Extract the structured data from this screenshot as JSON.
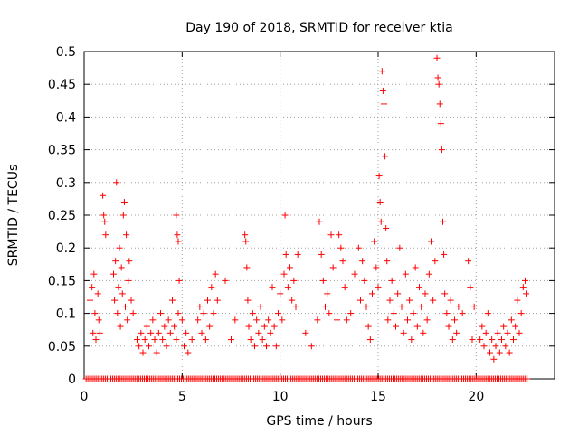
{
  "chart_data": {
    "type": "scatter",
    "title": "Day 190 of 2018, SRMTID for receiver ktia",
    "xlabel": "GPS time / hours",
    "ylabel": "SRMTID / TECUs",
    "xlim": [
      0,
      24
    ],
    "ylim": [
      0,
      0.5
    ],
    "xticks": [
      0,
      5,
      10,
      15,
      20
    ],
    "xtick_labels": [
      "0",
      "5",
      "10",
      "15",
      "20"
    ],
    "yticks": [
      0,
      0.05,
      0.1,
      0.15,
      0.2,
      0.25,
      0.3,
      0.35,
      0.4,
      0.45,
      0.5
    ],
    "ytick_labels": [
      "0",
      "0.05",
      "0.1",
      "0.15",
      "0.2",
      "0.25",
      "0.3",
      "0.35",
      "0.4",
      "0.45",
      "0.5"
    ],
    "grid": true,
    "marker": "+",
    "marker_color": "#ff0000",
    "series": [
      {
        "name": "SRMTID",
        "points": [
          [
            0.3,
            0.12
          ],
          [
            0.4,
            0.14
          ],
          [
            0.45,
            0.07
          ],
          [
            0.5,
            0.16
          ],
          [
            0.55,
            0.1
          ],
          [
            0.6,
            0.06
          ],
          [
            0.7,
            0.13
          ],
          [
            0.75,
            0.09
          ],
          [
            0.8,
            0.07
          ],
          [
            0.95,
            0.28
          ],
          [
            1.0,
            0.25
          ],
          [
            1.05,
            0.24
          ],
          [
            1.1,
            0.22
          ],
          [
            1.5,
            0.16
          ],
          [
            1.55,
            0.12
          ],
          [
            1.6,
            0.18
          ],
          [
            1.65,
            0.3
          ],
          [
            1.7,
            0.1
          ],
          [
            1.75,
            0.14
          ],
          [
            1.8,
            0.2
          ],
          [
            1.85,
            0.08
          ],
          [
            1.9,
            0.17
          ],
          [
            1.95,
            0.13
          ],
          [
            2.0,
            0.25
          ],
          [
            2.05,
            0.27
          ],
          [
            2.1,
            0.11
          ],
          [
            2.15,
            0.22
          ],
          [
            2.2,
            0.09
          ],
          [
            2.25,
            0.15
          ],
          [
            2.3,
            0.18
          ],
          [
            2.4,
            0.12
          ],
          [
            2.5,
            0.1
          ],
          [
            2.7,
            0.06
          ],
          [
            2.8,
            0.05
          ],
          [
            2.9,
            0.07
          ],
          [
            3.0,
            0.04
          ],
          [
            3.1,
            0.06
          ],
          [
            3.2,
            0.08
          ],
          [
            3.3,
            0.05
          ],
          [
            3.4,
            0.07
          ],
          [
            3.5,
            0.09
          ],
          [
            3.6,
            0.06
          ],
          [
            3.7,
            0.04
          ],
          [
            3.8,
            0.07
          ],
          [
            3.9,
            0.1
          ],
          [
            4.0,
            0.06
          ],
          [
            4.1,
            0.08
          ],
          [
            4.2,
            0.05
          ],
          [
            4.3,
            0.09
          ],
          [
            4.4,
            0.07
          ],
          [
            4.5,
            0.12
          ],
          [
            4.6,
            0.08
          ],
          [
            4.7,
            0.06
          ],
          [
            4.8,
            0.1
          ],
          [
            4.7,
            0.25
          ],
          [
            4.75,
            0.22
          ],
          [
            4.8,
            0.21
          ],
          [
            4.85,
            0.15
          ],
          [
            5.0,
            0.09
          ],
          [
            5.1,
            0.05
          ],
          [
            5.2,
            0.07
          ],
          [
            5.3,
            0.04
          ],
          [
            5.5,
            0.06
          ],
          [
            5.8,
            0.09
          ],
          [
            5.9,
            0.11
          ],
          [
            6.0,
            0.07
          ],
          [
            6.1,
            0.1
          ],
          [
            6.2,
            0.06
          ],
          [
            6.3,
            0.12
          ],
          [
            6.4,
            0.08
          ],
          [
            6.5,
            0.14
          ],
          [
            6.6,
            0.1
          ],
          [
            6.7,
            0.16
          ],
          [
            6.8,
            0.12
          ],
          [
            7.2,
            0.15
          ],
          [
            7.5,
            0.06
          ],
          [
            7.7,
            0.09
          ],
          [
            8.2,
            0.22
          ],
          [
            8.25,
            0.21
          ],
          [
            8.3,
            0.17
          ],
          [
            8.35,
            0.12
          ],
          [
            8.4,
            0.08
          ],
          [
            8.5,
            0.06
          ],
          [
            8.6,
            0.1
          ],
          [
            8.7,
            0.05
          ],
          [
            8.8,
            0.09
          ],
          [
            8.9,
            0.07
          ],
          [
            9.0,
            0.11
          ],
          [
            9.1,
            0.06
          ],
          [
            9.2,
            0.08
          ],
          [
            9.3,
            0.05
          ],
          [
            9.4,
            0.09
          ],
          [
            9.5,
            0.07
          ],
          [
            9.6,
            0.14
          ],
          [
            9.7,
            0.08
          ],
          [
            9.8,
            0.05
          ],
          [
            9.9,
            0.1
          ],
          [
            10.0,
            0.13
          ],
          [
            10.1,
            0.09
          ],
          [
            10.2,
            0.16
          ],
          [
            10.25,
            0.25
          ],
          [
            10.3,
            0.19
          ],
          [
            10.4,
            0.14
          ],
          [
            10.5,
            0.17
          ],
          [
            10.6,
            0.12
          ],
          [
            10.7,
            0.15
          ],
          [
            10.8,
            0.11
          ],
          [
            10.9,
            0.19
          ],
          [
            11.3,
            0.07
          ],
          [
            11.6,
            0.05
          ],
          [
            11.9,
            0.09
          ],
          [
            12.0,
            0.24
          ],
          [
            12.1,
            0.19
          ],
          [
            12.2,
            0.15
          ],
          [
            12.3,
            0.11
          ],
          [
            12.4,
            0.13
          ],
          [
            12.5,
            0.1
          ],
          [
            12.6,
            0.22
          ],
          [
            12.7,
            0.17
          ],
          [
            12.9,
            0.09
          ],
          [
            13.0,
            0.22
          ],
          [
            13.1,
            0.2
          ],
          [
            13.2,
            0.18
          ],
          [
            13.3,
            0.14
          ],
          [
            13.4,
            0.09
          ],
          [
            13.6,
            0.1
          ],
          [
            13.8,
            0.16
          ],
          [
            14.0,
            0.2
          ],
          [
            14.1,
            0.12
          ],
          [
            14.2,
            0.18
          ],
          [
            14.3,
            0.15
          ],
          [
            14.4,
            0.11
          ],
          [
            14.5,
            0.08
          ],
          [
            14.6,
            0.06
          ],
          [
            14.7,
            0.13
          ],
          [
            14.8,
            0.21
          ],
          [
            14.9,
            0.17
          ],
          [
            15.0,
            0.14
          ],
          [
            15.05,
            0.31
          ],
          [
            15.1,
            0.27
          ],
          [
            15.15,
            0.24
          ],
          [
            15.2,
            0.47
          ],
          [
            15.25,
            0.44
          ],
          [
            15.3,
            0.42
          ],
          [
            15.35,
            0.34
          ],
          [
            15.4,
            0.23
          ],
          [
            15.45,
            0.18
          ],
          [
            15.5,
            0.09
          ],
          [
            15.6,
            0.12
          ],
          [
            15.7,
            0.15
          ],
          [
            15.8,
            0.1
          ],
          [
            15.9,
            0.08
          ],
          [
            16.0,
            0.13
          ],
          [
            16.1,
            0.2
          ],
          [
            16.2,
            0.11
          ],
          [
            16.3,
            0.07
          ],
          [
            16.4,
            0.16
          ],
          [
            16.5,
            0.09
          ],
          [
            16.6,
            0.12
          ],
          [
            16.7,
            0.06
          ],
          [
            16.8,
            0.1
          ],
          [
            16.9,
            0.17
          ],
          [
            17.0,
            0.08
          ],
          [
            17.1,
            0.14
          ],
          [
            17.2,
            0.11
          ],
          [
            17.3,
            0.07
          ],
          [
            17.4,
            0.13
          ],
          [
            17.5,
            0.09
          ],
          [
            17.6,
            0.16
          ],
          [
            17.7,
            0.21
          ],
          [
            17.8,
            0.12
          ],
          [
            17.9,
            0.18
          ],
          [
            18.0,
            0.49
          ],
          [
            18.05,
            0.46
          ],
          [
            18.1,
            0.45
          ],
          [
            18.15,
            0.42
          ],
          [
            18.2,
            0.39
          ],
          [
            18.25,
            0.35
          ],
          [
            18.3,
            0.24
          ],
          [
            18.35,
            0.19
          ],
          [
            18.4,
            0.13
          ],
          [
            18.5,
            0.1
          ],
          [
            18.6,
            0.08
          ],
          [
            18.7,
            0.12
          ],
          [
            18.8,
            0.06
          ],
          [
            18.9,
            0.09
          ],
          [
            19.0,
            0.07
          ],
          [
            19.1,
            0.11
          ],
          [
            19.3,
            0.1
          ],
          [
            19.6,
            0.18
          ],
          [
            19.7,
            0.14
          ],
          [
            19.8,
            0.06
          ],
          [
            19.9,
            0.11
          ],
          [
            20.2,
            0.06
          ],
          [
            20.3,
            0.08
          ],
          [
            20.4,
            0.05
          ],
          [
            20.5,
            0.07
          ],
          [
            20.6,
            0.1
          ],
          [
            20.7,
            0.04
          ],
          [
            20.8,
            0.06
          ],
          [
            20.9,
            0.03
          ],
          [
            21.0,
            0.05
          ],
          [
            21.1,
            0.07
          ],
          [
            21.2,
            0.04
          ],
          [
            21.3,
            0.06
          ],
          [
            21.4,
            0.08
          ],
          [
            21.5,
            0.05
          ],
          [
            21.6,
            0.07
          ],
          [
            21.7,
            0.04
          ],
          [
            21.8,
            0.09
          ],
          [
            21.9,
            0.06
          ],
          [
            22.0,
            0.08
          ],
          [
            22.1,
            0.12
          ],
          [
            22.2,
            0.07
          ],
          [
            22.3,
            0.1
          ],
          [
            22.4,
            0.14
          ],
          [
            22.5,
            0.15
          ],
          [
            22.55,
            0.13
          ]
        ]
      }
    ],
    "zero_band": {
      "y": 0,
      "x_start": 0.1,
      "x_end": 22.6
    }
  }
}
